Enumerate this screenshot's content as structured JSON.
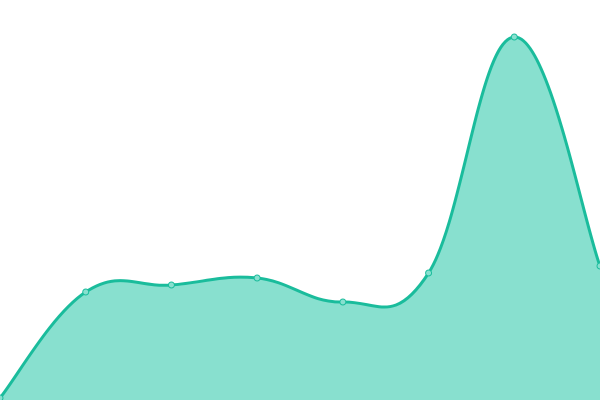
{
  "chart_data": {
    "type": "area",
    "smooth": true,
    "x": [
      0,
      1,
      2,
      3,
      4,
      5,
      6,
      7
    ],
    "series": [
      {
        "values": [
          2,
          108,
          115,
          122,
          98,
          127,
          363,
          134
        ]
      }
    ],
    "ylim": [
      0,
      400
    ],
    "grid": false,
    "axes_visible": false,
    "colors": {
      "line": "#1abc9c",
      "fill": "#88e0cf",
      "marker": "#88e0cf"
    }
  }
}
